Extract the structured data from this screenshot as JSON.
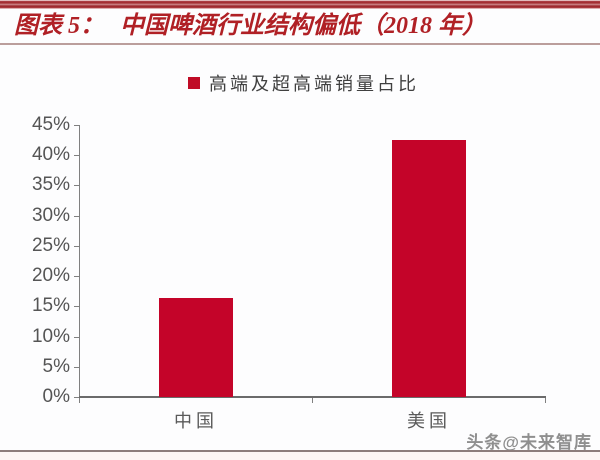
{
  "header": {
    "title_prefix": "图表 5：",
    "title_main": "中国啤酒行业结构偏低（2018 年）"
  },
  "legend": {
    "label": "高端及超高端销量占比",
    "marker_color": "#c00c26"
  },
  "chart_data": {
    "type": "bar",
    "title": "高端及超高端销量占比",
    "categories": [
      "中国",
      "美国"
    ],
    "values": [
      16.4,
      42.6
    ],
    "series": [
      {
        "name": "高端及超高端销量占比",
        "values": [
          16.4,
          42.6
        ]
      }
    ],
    "xlabel": "",
    "ylabel": "",
    "ylim": [
      0,
      45
    ],
    "ytick_step": 5,
    "ytick_labels": [
      "0%",
      "5%",
      "10%",
      "15%",
      "20%",
      "25%",
      "30%",
      "35%",
      "40%",
      "45%"
    ],
    "grid": false,
    "legend_position": "top",
    "bar_color": "#c40429"
  },
  "watermark": {
    "text": "头条@未来智库"
  },
  "colors": {
    "accent_red": "#b02025",
    "bar_red": "#c40429",
    "axis_gray": "#808080",
    "tick_label_gray": "#555555",
    "watermark_gray": "#8f8f8f"
  }
}
